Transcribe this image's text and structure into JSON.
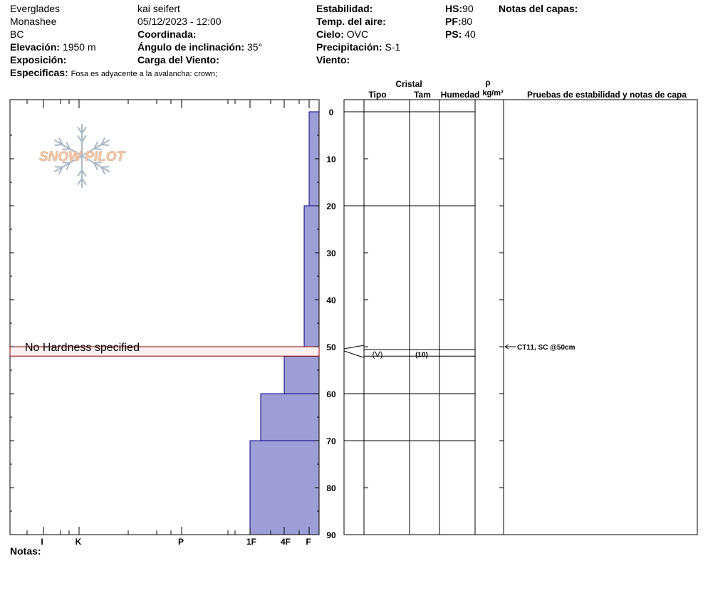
{
  "header": {
    "location": "Everglades",
    "range": "Monashee",
    "region": "BC",
    "elevation_label": "Elevación:",
    "elevation_value": "1950 m",
    "aspect_label": "Exposición:",
    "specifics_label": "Especificas:",
    "specifics_value": "Fosa es adyacente a la avalancha: crown;",
    "observer": "kai seifert",
    "datetime": "05/12/2023 - 12:00",
    "coordinate_label": "Coordinada:",
    "slope_label": "Ángulo de inclinación:",
    "slope_value": "35°",
    "wind_load_label": "Carga del Viento:",
    "stability_label": "Estabilidad:",
    "air_temp_label": "Temp. del aire:",
    "sky_label": "Cielo:",
    "sky_value": "OVC",
    "precip_label": "Precipitación:",
    "precip_value": "S-1",
    "wind_label": "Viento:",
    "hs_label": "HS:",
    "hs_value": "90",
    "pf_label": "PF:",
    "pf_value": "80",
    "ps_label": "PS:",
    "ps_value": "40",
    "layer_notes_label": "Notas del capas:"
  },
  "logo": {
    "text": "SNOW PILOT"
  },
  "notes_label": "Notas:",
  "columns": {
    "crystal_header": "Cristal",
    "type": "Tipo",
    "size": "Tam",
    "moisture": "Humedad",
    "density_symbol": "ρ",
    "density_unit": "kg/m³",
    "tests_header": "Pruebas de estabilidad y notas de capa"
  },
  "colors": {
    "hardness_fill": "#9e9ed6",
    "hardness_stroke": "#00008b",
    "weak_layer_fill": "#fdf0f0",
    "weak_layer_stroke": "#8b0000",
    "logo_flake": "#a9b7c6",
    "logo_text": "#f2c9a9"
  },
  "chart_data": {
    "type": "bar",
    "orientation": "horizontal",
    "depth_axis": {
      "unit": "cm",
      "range": [
        0,
        90
      ],
      "ticks": [
        "0",
        "10",
        "20",
        "30",
        "40",
        "50",
        "60",
        "70",
        "80",
        "90"
      ]
    },
    "hardness_axis": {
      "ticks": [
        "I",
        "K",
        "P",
        "1F",
        "4F",
        "F"
      ]
    },
    "hardness_layers": [
      {
        "top": 0,
        "bottom": 20,
        "hardness": "F"
      },
      {
        "top": 20,
        "bottom": 50,
        "hardness": "F+"
      },
      {
        "top": 52,
        "bottom": 60,
        "hardness": "4F"
      },
      {
        "top": 60,
        "bottom": 70,
        "hardness": "1F+"
      },
      {
        "top": 70,
        "bottom": 90,
        "hardness": "1F"
      }
    ],
    "weak_layer": {
      "top": 50,
      "bottom": 52,
      "label": "No Hardness specified"
    },
    "layer_boundaries": [
      0,
      20,
      50,
      52,
      60,
      70
    ],
    "grain_layers": [
      {
        "top": 50,
        "bottom": 52,
        "type": "(V)",
        "size": "(10)"
      }
    ],
    "stability_tests": [
      {
        "depth": 50,
        "text": "CT11, SC @50cm"
      }
    ]
  }
}
